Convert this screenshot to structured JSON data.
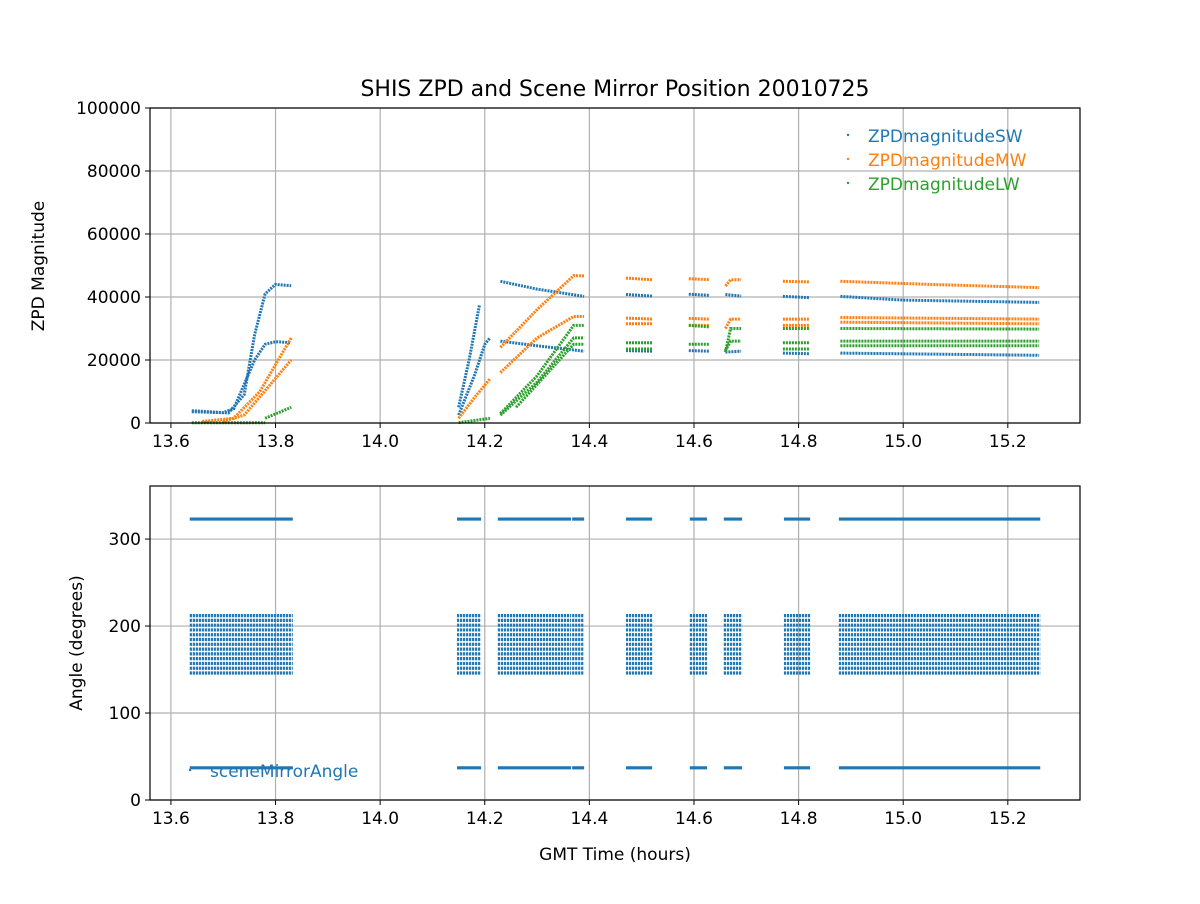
{
  "chart_data": [
    {
      "type": "scatter",
      "title": "SHIS ZPD and Scene Mirror Position 20010725",
      "xlabel": "",
      "ylabel": "ZPD Magnitude",
      "xlim": [
        13.56,
        15.338
      ],
      "ylim": [
        0,
        100000
      ],
      "grid": true,
      "xticks": [
        "13.6",
        "13.8",
        "14.0",
        "14.2",
        "14.4",
        "14.6",
        "14.8",
        "15.0",
        "15.2"
      ],
      "yticks": [
        "0",
        "20000",
        "40000",
        "60000",
        "80000",
        "100000"
      ],
      "legend_position": "top-right",
      "series": [
        {
          "name": "ZPDmagnitudeSW",
          "color": "#1f77b4",
          "tracks": [
            [
              [
                13.64,
                3900
              ],
              [
                13.7,
                3300
              ],
              [
                13.72,
                4500
              ],
              [
                13.76,
                20000
              ],
              [
                13.78,
                25000
              ],
              [
                13.8,
                25800
              ],
              [
                13.83,
                25500
              ]
            ],
            [
              [
                13.64,
                3600
              ],
              [
                13.71,
                3200
              ],
              [
                13.74,
                9000
              ],
              [
                13.76,
                28000
              ],
              [
                13.78,
                41000
              ],
              [
                13.8,
                44000
              ],
              [
                13.83,
                43600
              ]
            ],
            [
              [
                14.15,
                2500
              ],
              [
                14.18,
                15000
              ],
              [
                14.2,
                25000
              ],
              [
                14.21,
                27000
              ]
            ],
            [
              [
                14.15,
                5000
              ],
              [
                14.17,
                20000
              ],
              [
                14.19,
                37500
              ]
            ],
            [
              [
                14.23,
                45000
              ],
              [
                14.3,
                42500
              ],
              [
                14.39,
                40200
              ]
            ],
            [
              [
                14.23,
                26000
              ],
              [
                14.3,
                24500
              ],
              [
                14.39,
                22800
              ]
            ],
            [
              [
                14.47,
                40800
              ],
              [
                14.52,
                40300
              ]
            ],
            [
              [
                14.47,
                23000
              ],
              [
                14.52,
                22800
              ]
            ],
            [
              [
                14.59,
                40900
              ],
              [
                14.63,
                40500
              ]
            ],
            [
              [
                14.59,
                23000
              ],
              [
                14.63,
                22800
              ]
            ],
            [
              [
                14.66,
                40800
              ],
              [
                14.69,
                40300
              ]
            ],
            [
              [
                14.66,
                22500
              ],
              [
                14.69,
                22800
              ]
            ],
            [
              [
                14.77,
                40200
              ],
              [
                14.82,
                39800
              ]
            ],
            [
              [
                14.77,
                22200
              ],
              [
                14.82,
                22000
              ]
            ],
            [
              [
                14.88,
                40200
              ],
              [
                15.0,
                39000
              ],
              [
                15.26,
                38300
              ]
            ],
            [
              [
                14.88,
                22200
              ],
              [
                15.26,
                21500
              ]
            ]
          ]
        },
        {
          "name": "ZPDmagnitudeMW",
          "color": "#ff7f0e",
          "tracks": [
            [
              [
                13.66,
                500
              ],
              [
                13.72,
                1500
              ],
              [
                13.77,
                10000
              ],
              [
                13.83,
                27000
              ]
            ],
            [
              [
                13.7,
                500
              ],
              [
                13.74,
                2500
              ],
              [
                13.83,
                20000
              ]
            ],
            [
              [
                14.15,
                1500
              ],
              [
                14.18,
                8000
              ],
              [
                14.21,
                14000
              ]
            ],
            [
              [
                14.23,
                24000
              ],
              [
                14.3,
                36000
              ],
              [
                14.37,
                46800
              ],
              [
                14.39,
                46700
              ]
            ],
            [
              [
                14.23,
                16000
              ],
              [
                14.3,
                27000
              ],
              [
                14.37,
                33800
              ],
              [
                14.39,
                33800
              ]
            ],
            [
              [
                14.47,
                46000
              ],
              [
                14.52,
                45500
              ]
            ],
            [
              [
                14.47,
                33300
              ],
              [
                14.52,
                33000
              ]
            ],
            [
              [
                14.47,
                31500
              ],
              [
                14.52,
                31500
              ]
            ],
            [
              [
                14.59,
                45800
              ],
              [
                14.63,
                45500
              ]
            ],
            [
              [
                14.59,
                33200
              ],
              [
                14.63,
                33000
              ]
            ],
            [
              [
                14.59,
                31000
              ],
              [
                14.63,
                31000
              ]
            ],
            [
              [
                14.66,
                43500
              ],
              [
                14.67,
                45500
              ],
              [
                14.69,
                45500
              ]
            ],
            [
              [
                14.66,
                30000
              ],
              [
                14.67,
                33000
              ],
              [
                14.69,
                33000
              ]
            ],
            [
              [
                14.77,
                45000
              ],
              [
                14.82,
                44800
              ]
            ],
            [
              [
                14.77,
                33000
              ],
              [
                14.82,
                33000
              ]
            ],
            [
              [
                14.77,
                31000
              ],
              [
                14.82,
                31000
              ]
            ],
            [
              [
                14.88,
                45000
              ],
              [
                15.05,
                44000
              ],
              [
                15.26,
                43000
              ]
            ],
            [
              [
                14.88,
                33500
              ],
              [
                15.26,
                33000
              ]
            ],
            [
              [
                14.88,
                32000
              ],
              [
                15.26,
                31500
              ]
            ]
          ]
        },
        {
          "name": "ZPDmagnitudeLW",
          "color": "#2ca02c",
          "tracks": [
            [
              [
                13.64,
                100
              ],
              [
                13.78,
                100
              ]
            ],
            [
              [
                13.78,
                1500
              ],
              [
                13.83,
                5000
              ]
            ],
            [
              [
                14.15,
                100
              ],
              [
                14.21,
                1500
              ]
            ],
            [
              [
                14.23,
                3000
              ],
              [
                14.3,
                15000
              ],
              [
                14.37,
                31000
              ],
              [
                14.39,
                31000
              ]
            ],
            [
              [
                14.23,
                2500
              ],
              [
                14.3,
                13000
              ],
              [
                14.37,
                27000
              ],
              [
                14.39,
                27000
              ]
            ],
            [
              [
                14.26,
                5000
              ],
              [
                14.37,
                25000
              ],
              [
                14.39,
                25000
              ]
            ],
            [
              [
                14.47,
                25500
              ],
              [
                14.52,
                25500
              ]
            ],
            [
              [
                14.47,
                23500
              ],
              [
                14.52,
                23500
              ]
            ],
            [
              [
                14.59,
                31000
              ],
              [
                14.63,
                30500
              ]
            ],
            [
              [
                14.59,
                25000
              ],
              [
                14.63,
                25000
              ]
            ],
            [
              [
                14.66,
                22500
              ],
              [
                14.67,
                30000
              ],
              [
                14.69,
                30000
              ]
            ],
            [
              [
                14.66,
                23000
              ],
              [
                14.67,
                26000
              ],
              [
                14.69,
                26000
              ]
            ],
            [
              [
                14.77,
                30000
              ],
              [
                14.82,
                30000
              ]
            ],
            [
              [
                14.77,
                25500
              ],
              [
                14.82,
                25500
              ]
            ],
            [
              [
                14.77,
                23500
              ],
              [
                14.82,
                23500
              ]
            ],
            [
              [
                14.88,
                30000
              ],
              [
                15.26,
                29800
              ]
            ],
            [
              [
                14.88,
                26000
              ],
              [
                15.26,
                26000
              ]
            ],
            [
              [
                14.88,
                24500
              ],
              [
                15.26,
                24500
              ]
            ]
          ]
        }
      ]
    },
    {
      "type": "scatter",
      "title": "",
      "xlabel": "GMT Time (hours)",
      "ylabel": "Angle (degrees)",
      "xlim": [
        13.56,
        15.338
      ],
      "ylim": [
        0,
        361
      ],
      "grid": true,
      "xticks": [
        "13.6",
        "13.8",
        "14.0",
        "14.2",
        "14.4",
        "14.6",
        "14.8",
        "15.0",
        "15.2"
      ],
      "yticks": [
        "0",
        "100",
        "200",
        "300"
      ],
      "legend_position": "lower-left",
      "series": [
        {
          "name": "sceneMirrorAngle",
          "color": "#1f77b4",
          "segments": [
            [
              13.636,
              13.833
            ],
            [
              14.147,
              14.193
            ],
            [
              14.225,
              14.365
            ],
            [
              14.367,
              14.39
            ],
            [
              14.47,
              14.52
            ],
            [
              14.592,
              14.625
            ],
            [
              14.657,
              14.692
            ],
            [
              14.772,
              14.822
            ],
            [
              14.877,
              15.262
            ]
          ],
          "angles": [
            37,
            146,
            151.5,
            157,
            162.5,
            168,
            173.5,
            179,
            184.5,
            190,
            195.5,
            201,
            206.5,
            212,
            323
          ]
        }
      ]
    }
  ]
}
